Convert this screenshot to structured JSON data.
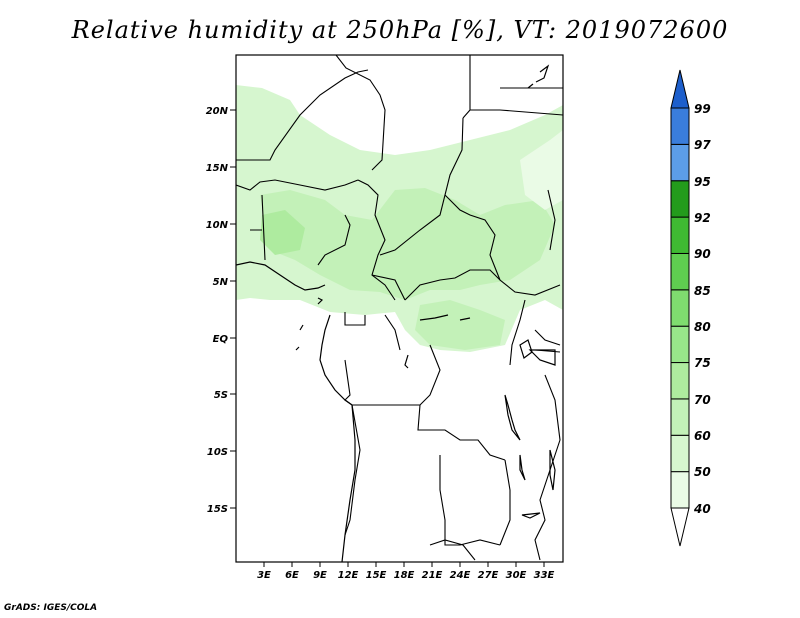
{
  "title": "Relative humidity at 250hPa [%], VT: 2019072600",
  "credit": "GrADS: IGES/COLA",
  "lat_labels": [
    "20N",
    "15N",
    "10N",
    "5N",
    "EQ",
    "5S",
    "10S",
    "15S"
  ],
  "lon_labels": [
    "3E",
    "6E",
    "9E",
    "12E",
    "15E",
    "18E",
    "21E",
    "24E",
    "27E",
    "30E",
    "33E"
  ],
  "colorbar": {
    "levels": [
      "40",
      "50",
      "60",
      "70",
      "75",
      "80",
      "85",
      "90",
      "92",
      "95",
      "97",
      "99"
    ],
    "colors": [
      "#eafbe6",
      "#d6f6cf",
      "#c3f1b8",
      "#aeeb9f",
      "#98e68a",
      "#7fdc6f",
      "#5fce50",
      "#3fba32",
      "#239b1c",
      "#5c9de8",
      "#3a7ddb",
      "#1d5fcc"
    ]
  },
  "map_data": {
    "region": "Central Africa",
    "lon_range": [
      0,
      35
    ],
    "lat_range": [
      -20,
      24
    ],
    "variable": "Relative humidity",
    "level_hPa": 250,
    "valid_time": "2019072600",
    "humid_band": "Moist band (40-75%) between about 2N and 18N, extending into the Congo basin near the equator"
  }
}
